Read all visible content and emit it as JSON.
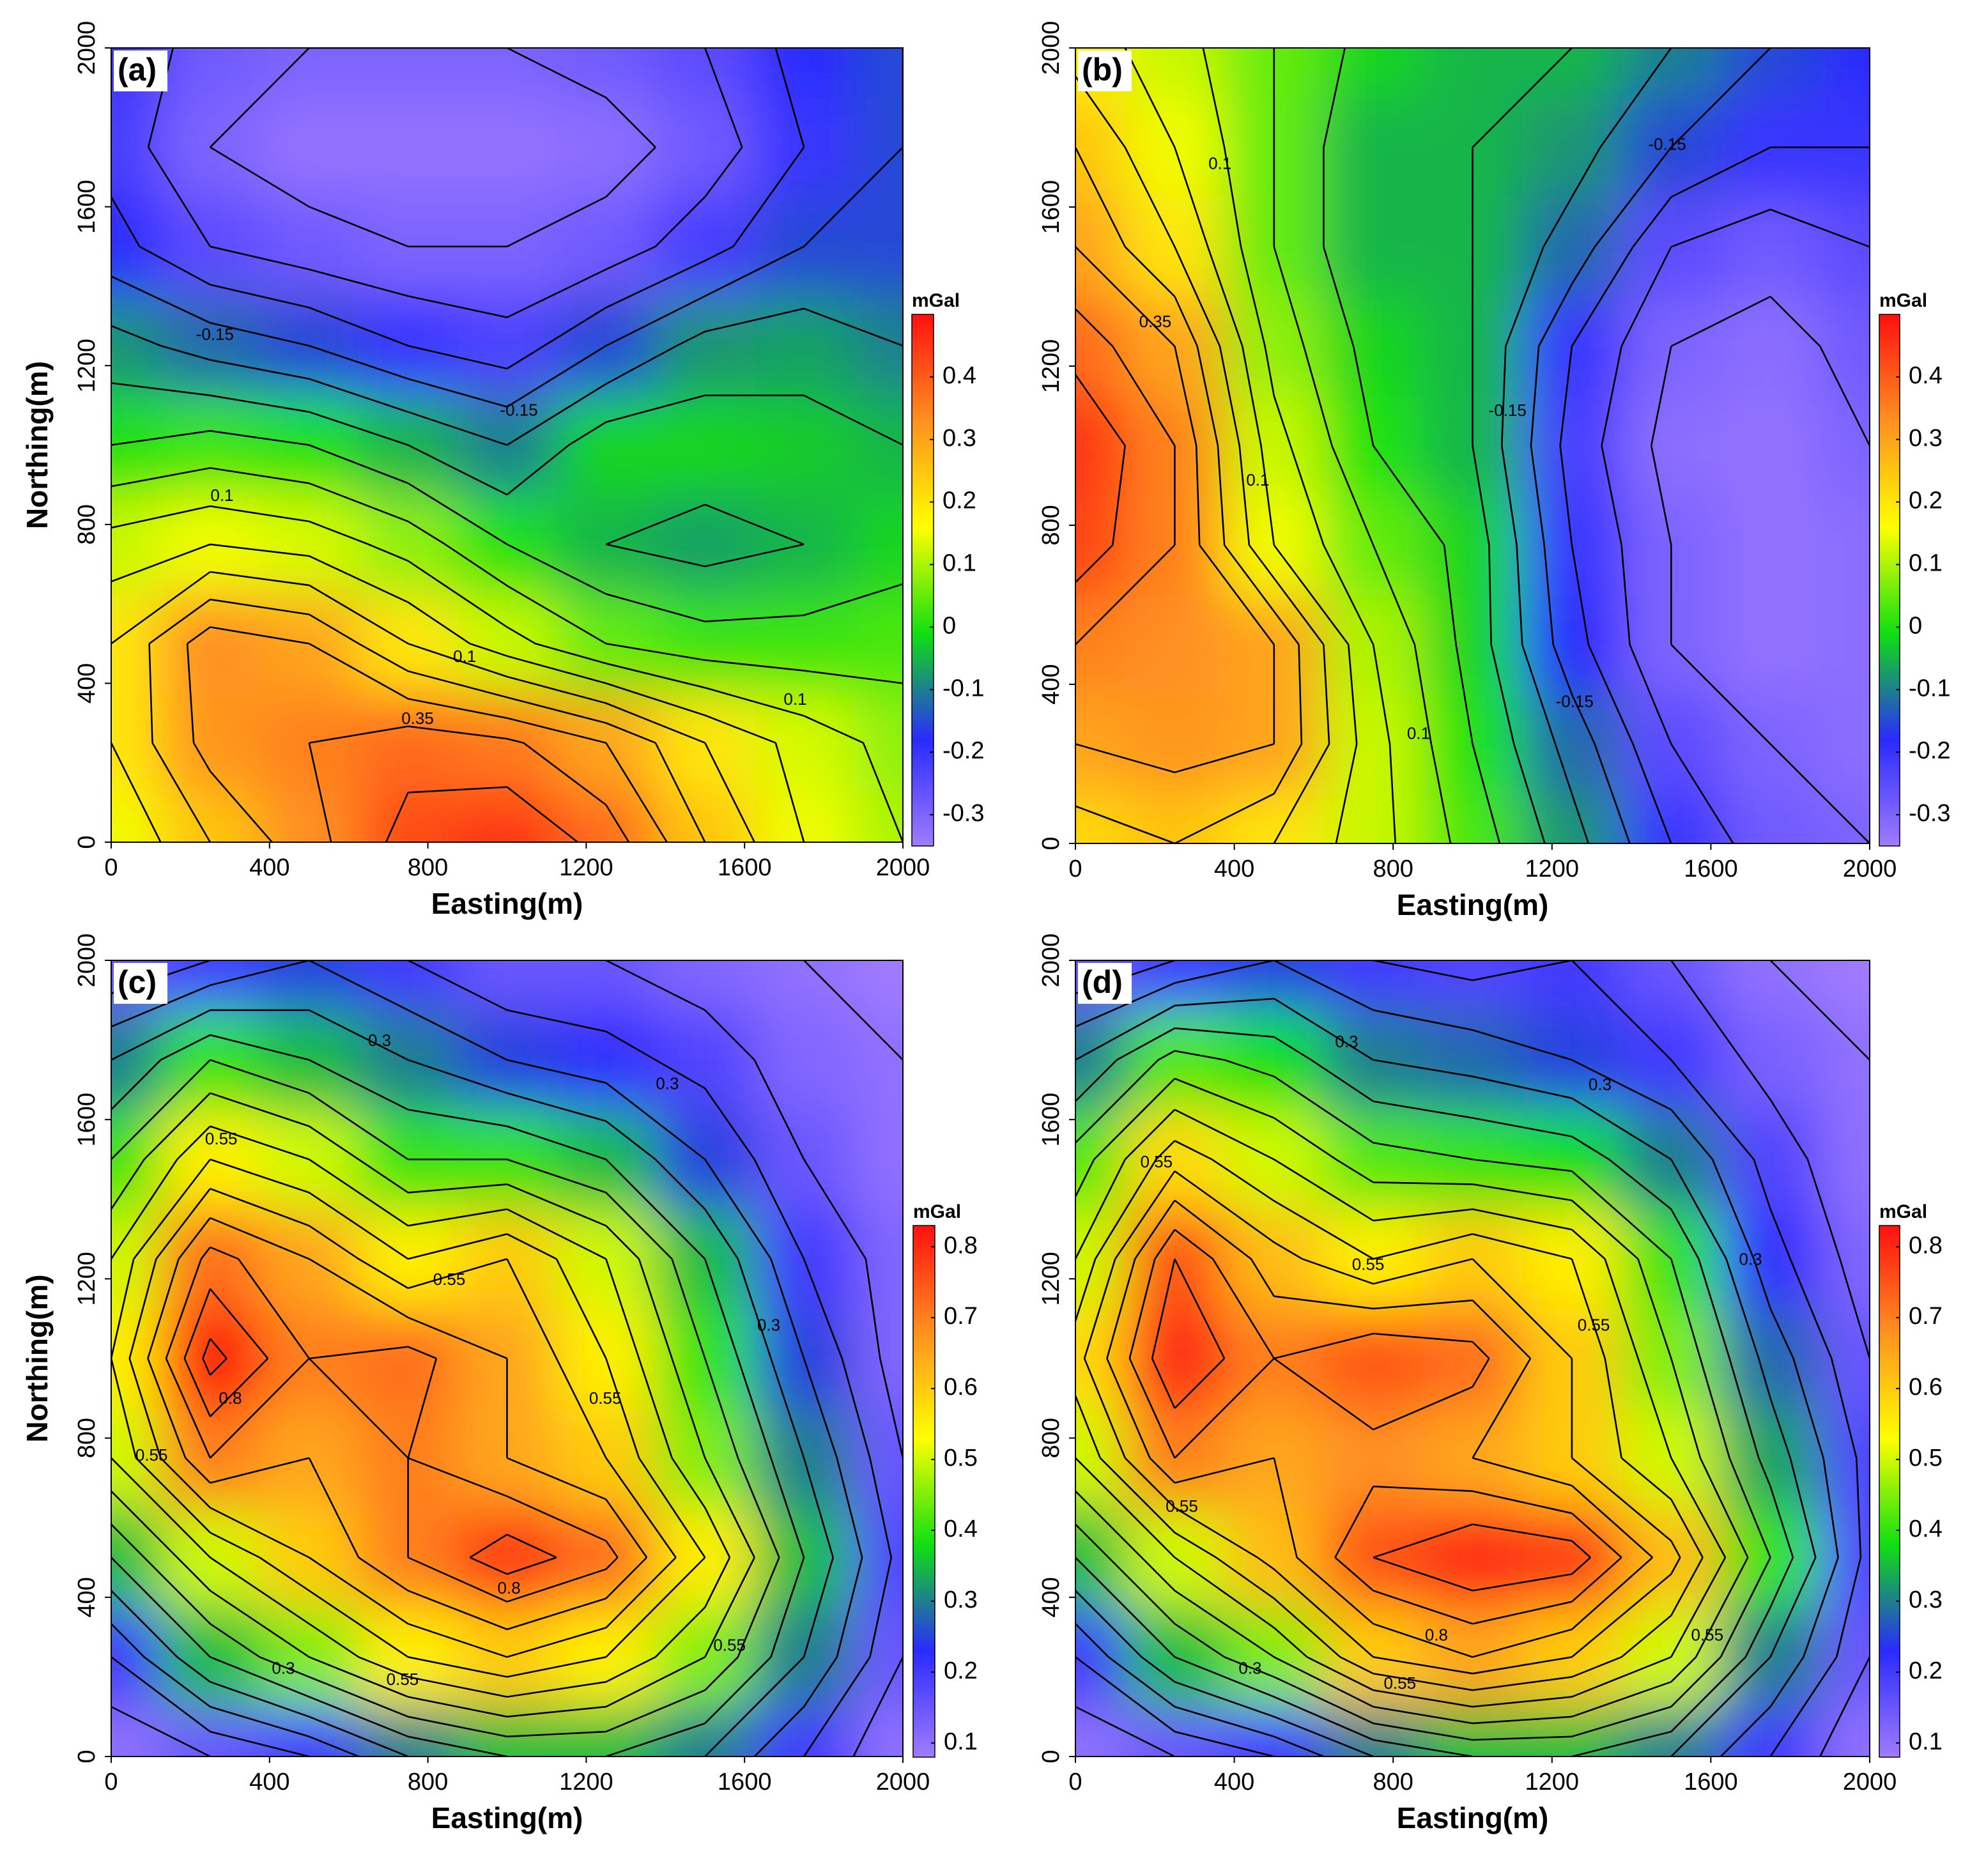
{
  "chart_data": [
    {
      "type": "contour",
      "label": "(a)",
      "x_label": "Easting(m)",
      "y_label": "Northing(m)",
      "colorbar_title": "mGal",
      "xlim": [
        0,
        2000
      ],
      "ylim": [
        0,
        2000
      ],
      "xticks": [
        0,
        400,
        800,
        1200,
        1600,
        2000
      ],
      "yticks": [
        0,
        400,
        800,
        1200,
        1600,
        2000
      ],
      "x": [
        0,
        250,
        500,
        750,
        1000,
        1250,
        1500,
        1750,
        2000
      ],
      "y": [
        0,
        250,
        500,
        750,
        1000,
        1250,
        1500,
        1750,
        2000
      ],
      "z": [
        [
          0.15,
          0.25,
          0.33,
          0.42,
          0.45,
          0.38,
          0.25,
          0.15,
          0.1
        ],
        [
          0.2,
          0.32,
          0.35,
          0.38,
          0.36,
          0.3,
          0.2,
          0.13,
          0.08
        ],
        [
          0.2,
          0.33,
          0.3,
          0.2,
          0.12,
          0.05,
          0.02,
          0.02,
          0.03
        ],
        [
          0.12,
          0.15,
          0.13,
          0.08,
          0.0,
          -0.05,
          -0.07,
          -0.05,
          -0.02
        ],
        [
          0.0,
          0.02,
          0.0,
          -0.05,
          -0.1,
          -0.02,
          -0.02,
          -0.03,
          -0.05
        ],
        [
          -0.08,
          -0.12,
          -0.15,
          -0.2,
          -0.23,
          -0.15,
          -0.08,
          -0.07,
          -0.1
        ],
        [
          -0.18,
          -0.25,
          -0.28,
          -0.3,
          -0.3,
          -0.28,
          -0.22,
          -0.15,
          -0.15
        ],
        [
          -0.22,
          -0.3,
          -0.33,
          -0.33,
          -0.33,
          -0.32,
          -0.28,
          -0.2,
          -0.15
        ],
        [
          -0.2,
          -0.28,
          -0.3,
          -0.3,
          -0.3,
          -0.28,
          -0.25,
          -0.18,
          -0.15
        ]
      ],
      "clim": [
        -0.35,
        0.5
      ],
      "cticks": [
        -0.3,
        -0.2,
        -0.1,
        0,
        0.1,
        0.2,
        0.3,
        0.4
      ],
      "colormap": [
        "#a07cff",
        "#2a2aff",
        "#10e010",
        "#ffff00",
        "#ff9020",
        "#ff1010"
      ],
      "contour_levels": [
        -0.35,
        -0.3,
        -0.25,
        -0.2,
        -0.15,
        -0.1,
        -0.05,
        0,
        0.05,
        0.1,
        0.15,
        0.2,
        0.25,
        0.3,
        0.35,
        0.4,
        0.45
      ],
      "contour_labels": [
        -0.15,
        -0.15,
        0.1,
        0.1,
        0.1,
        0.35
      ]
    },
    {
      "type": "contour",
      "label": "(b)",
      "x_label": "Easting(m)",
      "colorbar_title": "mGal",
      "xlim": [
        0,
        2000
      ],
      "ylim": [
        0,
        2000
      ],
      "xticks": [
        0,
        400,
        800,
        1200,
        1600,
        2000
      ],
      "yticks": [
        0,
        400,
        800,
        1200,
        1600,
        2000
      ],
      "x": [
        0,
        250,
        500,
        750,
        1000,
        1250,
        1500,
        1750,
        2000
      ],
      "y": [
        0,
        250,
        500,
        750,
        1000,
        1250,
        1500,
        1750,
        2000
      ],
      "z": [
        [
          0.22,
          0.25,
          0.2,
          0.12,
          0.03,
          -0.08,
          -0.2,
          -0.28,
          -0.3
        ],
        [
          0.3,
          0.32,
          0.3,
          0.12,
          0.0,
          -0.12,
          -0.25,
          -0.3,
          -0.32
        ],
        [
          0.35,
          0.33,
          0.3,
          0.1,
          -0.02,
          -0.18,
          -0.3,
          -0.33,
          -0.32
        ],
        [
          0.43,
          0.35,
          0.15,
          0.05,
          -0.02,
          -0.2,
          -0.3,
          -0.33,
          -0.32
        ],
        [
          0.45,
          0.35,
          0.12,
          0.0,
          -0.05,
          -0.22,
          -0.32,
          -0.33,
          -0.3
        ],
        [
          0.38,
          0.3,
          0.08,
          -0.02,
          -0.05,
          -0.2,
          -0.3,
          -0.32,
          -0.28
        ],
        [
          0.3,
          0.2,
          0.05,
          -0.05,
          -0.05,
          -0.12,
          -0.25,
          -0.28,
          -0.25
        ],
        [
          0.25,
          0.15,
          0.05,
          -0.05,
          -0.05,
          -0.08,
          -0.15,
          -0.2,
          -0.2
        ],
        [
          0.18,
          0.12,
          0.05,
          -0.02,
          -0.05,
          -0.05,
          -0.1,
          -0.15,
          -0.18
        ]
      ],
      "clim": [
        -0.35,
        0.5
      ],
      "cticks": [
        -0.3,
        -0.2,
        -0.1,
        0,
        0.1,
        0.2,
        0.3,
        0.4
      ],
      "colormap": [
        "#a07cff",
        "#2a2aff",
        "#10e010",
        "#ffff00",
        "#ff9020",
        "#ff1010"
      ],
      "contour_levels": [
        -0.35,
        -0.3,
        -0.25,
        -0.2,
        -0.15,
        -0.1,
        -0.05,
        0,
        0.05,
        0.1,
        0.15,
        0.2,
        0.25,
        0.3,
        0.35,
        0.4,
        0.45
      ],
      "contour_labels": [
        0.1,
        0.35,
        0.1,
        0.1,
        -0.15,
        -0.15,
        -0.15
      ]
    },
    {
      "type": "contour",
      "label": "(c)",
      "x_label": "Easting(m)",
      "y_label": "Northing(m)",
      "colorbar_title": "mGal",
      "xlim": [
        0,
        2000
      ],
      "ylim": [
        0,
        2000
      ],
      "xticks": [
        0,
        400,
        800,
        1200,
        1600,
        2000
      ],
      "yticks": [
        0,
        400,
        800,
        1200,
        1600,
        2000
      ],
      "x": [
        0,
        250,
        500,
        750,
        1000,
        1250,
        1500,
        1750,
        2000
      ],
      "y": [
        0,
        250,
        500,
        750,
        1000,
        1250,
        1500,
        1750,
        2000
      ],
      "z": [
        [
          0.1,
          0.15,
          0.2,
          0.3,
          0.35,
          0.35,
          0.3,
          0.2,
          0.1
        ],
        [
          0.2,
          0.35,
          0.45,
          0.55,
          0.6,
          0.55,
          0.45,
          0.3,
          0.15
        ],
        [
          0.35,
          0.5,
          0.6,
          0.7,
          0.78,
          0.72,
          0.55,
          0.35,
          0.18
        ],
        [
          0.5,
          0.7,
          0.65,
          0.7,
          0.65,
          0.6,
          0.45,
          0.3,
          0.15
        ],
        [
          0.55,
          0.82,
          0.7,
          0.72,
          0.65,
          0.55,
          0.4,
          0.25,
          0.12
        ],
        [
          0.5,
          0.72,
          0.65,
          0.55,
          0.6,
          0.5,
          0.35,
          0.2,
          0.12
        ],
        [
          0.4,
          0.55,
          0.5,
          0.4,
          0.4,
          0.35,
          0.25,
          0.15,
          0.1
        ],
        [
          0.3,
          0.4,
          0.35,
          0.3,
          0.25,
          0.22,
          0.18,
          0.12,
          0.1
        ],
        [
          0.15,
          0.2,
          0.25,
          0.2,
          0.15,
          0.15,
          0.12,
          0.1,
          0.08
        ]
      ],
      "clim": [
        0.08,
        0.83
      ],
      "cticks": [
        0.1,
        0.2,
        0.3,
        0.4,
        0.5,
        0.6,
        0.7,
        0.8
      ],
      "colormap": [
        "#a07cff",
        "#2a2aff",
        "#10e010",
        "#ffff00",
        "#ff9020",
        "#ff1010"
      ],
      "contour_levels": [
        0.1,
        0.15,
        0.2,
        0.25,
        0.3,
        0.35,
        0.4,
        0.45,
        0.5,
        0.55,
        0.6,
        0.65,
        0.7,
        0.75,
        0.8
      ],
      "contour_labels": [
        0.3,
        0.3,
        0.55,
        0.55,
        0.3,
        0.8,
        0.55,
        0.55,
        0.8,
        0.55,
        0.3,
        0.55
      ]
    },
    {
      "type": "contour",
      "label": "(d)",
      "x_label": "Easting(m)",
      "colorbar_title": "mGal",
      "xlim": [
        0,
        2000
      ],
      "ylim": [
        0,
        2000
      ],
      "xticks": [
        0,
        400,
        800,
        1200,
        1600,
        2000
      ],
      "yticks": [
        0,
        400,
        800,
        1200,
        1600,
        2000
      ],
      "x": [
        0,
        250,
        500,
        750,
        1000,
        1250,
        1500,
        1750,
        2000
      ],
      "y": [
        0,
        250,
        500,
        750,
        1000,
        1250,
        1500,
        1750,
        2000
      ],
      "z": [
        [
          0.1,
          0.15,
          0.2,
          0.3,
          0.35,
          0.35,
          0.3,
          0.2,
          0.1
        ],
        [
          0.2,
          0.35,
          0.45,
          0.6,
          0.65,
          0.6,
          0.5,
          0.3,
          0.15
        ],
        [
          0.35,
          0.5,
          0.62,
          0.75,
          0.8,
          0.78,
          0.62,
          0.4,
          0.18
        ],
        [
          0.5,
          0.7,
          0.65,
          0.68,
          0.65,
          0.6,
          0.5,
          0.33,
          0.18
        ],
        [
          0.58,
          0.8,
          0.7,
          0.75,
          0.72,
          0.6,
          0.45,
          0.28,
          0.15
        ],
        [
          0.5,
          0.75,
          0.62,
          0.55,
          0.6,
          0.55,
          0.4,
          0.22,
          0.12
        ],
        [
          0.42,
          0.58,
          0.5,
          0.42,
          0.4,
          0.38,
          0.3,
          0.18,
          0.1
        ],
        [
          0.3,
          0.42,
          0.38,
          0.3,
          0.28,
          0.25,
          0.2,
          0.13,
          0.1
        ],
        [
          0.15,
          0.2,
          0.25,
          0.2,
          0.18,
          0.2,
          0.15,
          0.1,
          0.08
        ]
      ],
      "clim": [
        0.08,
        0.83
      ],
      "cticks": [
        0.1,
        0.2,
        0.3,
        0.4,
        0.5,
        0.6,
        0.7,
        0.8
      ],
      "colormap": [
        "#a07cff",
        "#2a2aff",
        "#10e010",
        "#ffff00",
        "#ff9020",
        "#ff1010"
      ],
      "contour_levels": [
        0.1,
        0.15,
        0.2,
        0.25,
        0.3,
        0.35,
        0.4,
        0.45,
        0.5,
        0.55,
        0.6,
        0.65,
        0.7,
        0.75,
        0.8
      ],
      "contour_labels": [
        0.3,
        0.3,
        0.55,
        0.55,
        0.3,
        0.55,
        0.55,
        0.8,
        0.55,
        0.3,
        0.55
      ]
    }
  ]
}
